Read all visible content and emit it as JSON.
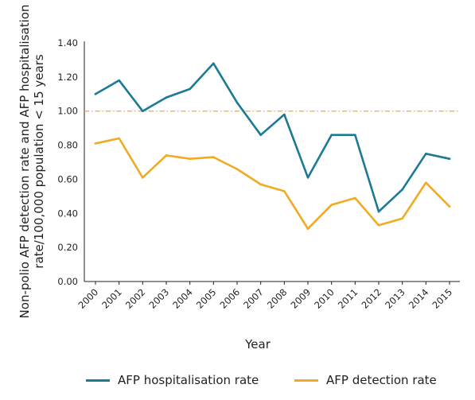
{
  "chart_data": {
    "type": "line",
    "categories": [
      "2000",
      "2001",
      "2002",
      "2003",
      "2004",
      "2005",
      "2006",
      "2007",
      "2008",
      "2009",
      "2010",
      "2011",
      "2012",
      "2013",
      "2014",
      "2015"
    ],
    "series": [
      {
        "name": "AFP hospitalisation rate",
        "color": "#1b7a94",
        "values": [
          1.1,
          1.18,
          1.0,
          1.08,
          1.13,
          1.28,
          1.05,
          0.86,
          0.98,
          0.61,
          0.86,
          0.86,
          0.41,
          0.54,
          0.75,
          0.72
        ]
      },
      {
        "name": "AFP detection rate",
        "color": "#f0ab23",
        "values": [
          0.81,
          0.84,
          0.61,
          0.74,
          0.72,
          0.73,
          0.66,
          0.57,
          0.53,
          0.31,
          0.45,
          0.49,
          0.33,
          0.37,
          0.58,
          0.44
        ]
      }
    ],
    "reference_line": {
      "value": 1.0,
      "style": "dash-dot",
      "color": "#f0ab23"
    },
    "y_ticks": [
      "0.00",
      "0.20",
      "0.40",
      "0.60",
      "0.80",
      "1.00",
      "1.20",
      "1.40"
    ],
    "xlabel": "Year",
    "ylabel_line1": "Non-polio AFP detection rate and AFP hospitalisation",
    "ylabel_line2": "rate/100,000 population < 15 years",
    "ylim": [
      0,
      1.4
    ],
    "grid": false,
    "legend_position": "bottom"
  }
}
